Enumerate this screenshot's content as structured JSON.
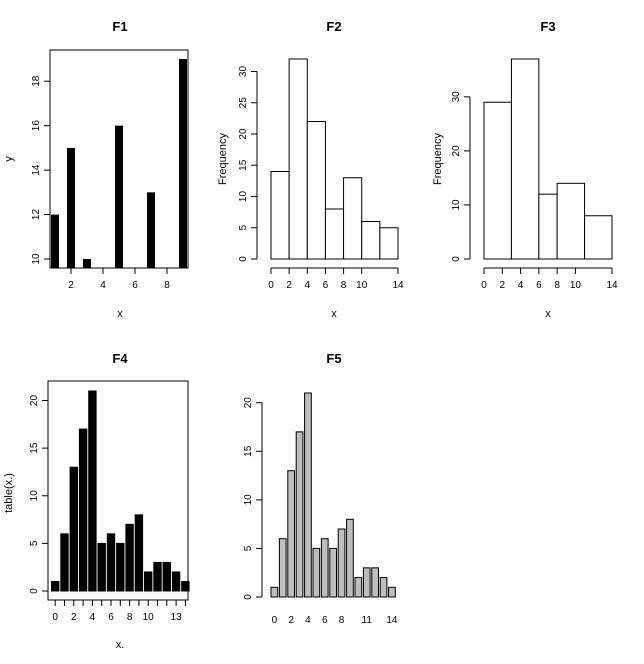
{
  "chart_data": [
    {
      "id": "F1",
      "type": "bar",
      "title": "F1",
      "xlabel": "x",
      "ylabel": "y",
      "x": [
        1,
        2,
        3,
        5,
        7,
        9
      ],
      "values": [
        12,
        15,
        10,
        16,
        13,
        19
      ],
      "xlim": [
        1,
        9
      ],
      "ylim": [
        10,
        19
      ],
      "xticks": [
        2,
        4,
        6,
        8
      ],
      "yticks": [
        10,
        12,
        14,
        16,
        18
      ],
      "fill": "#000000"
    },
    {
      "id": "F2",
      "type": "bar",
      "title": "F2",
      "xlabel": "x",
      "ylabel": "Frequency",
      "breaks": [
        0,
        2,
        4,
        6,
        8,
        10,
        12,
        14
      ],
      "values": [
        14,
        32,
        22,
        8,
        13,
        6,
        5
      ],
      "xticks": [
        0,
        2,
        4,
        6,
        8,
        10,
        14
      ],
      "yticks": [
        0,
        5,
        10,
        15,
        20,
        25,
        30
      ],
      "ylim": [
        0,
        32
      ],
      "fill": "#ffffff"
    },
    {
      "id": "F3",
      "type": "bar",
      "title": "F3",
      "xlabel": "x",
      "ylabel": "Frequency",
      "breaks": [
        0,
        3,
        6,
        8,
        11,
        14
      ],
      "values": [
        29,
        37,
        12,
        14,
        8
      ],
      "xticks": [
        0,
        2,
        4,
        6,
        8,
        10,
        14
      ],
      "yticks": [
        0,
        10,
        20,
        30
      ],
      "ylim": [
        0,
        37
      ],
      "fill": "#ffffff"
    },
    {
      "id": "F4",
      "type": "bar",
      "title": "F4",
      "xlabel": "x.",
      "ylabel": "table(x.)",
      "categories": [
        "0",
        "1",
        "2",
        "3",
        "4",
        "5",
        "6",
        "7",
        "8",
        "9",
        "10",
        "11",
        "12",
        "13",
        "14"
      ],
      "values": [
        1,
        6,
        13,
        17,
        21,
        5,
        6,
        5,
        7,
        8,
        2,
        3,
        3,
        2,
        1
      ],
      "xticks": [
        0,
        2,
        4,
        6,
        8,
        10,
        13
      ],
      "yticks": [
        0,
        5,
        10,
        15,
        20
      ],
      "ylim": [
        0,
        21
      ],
      "fill": "#000000"
    },
    {
      "id": "F5",
      "type": "bar",
      "title": "F5",
      "xlabel": "",
      "ylabel": "",
      "categories": [
        "0",
        "1",
        "2",
        "3",
        "4",
        "5",
        "6",
        "7",
        "8",
        "9",
        "10",
        "11",
        "12",
        "13",
        "14"
      ],
      "values": [
        1,
        6,
        13,
        17,
        21,
        5,
        6,
        5,
        7,
        8,
        2,
        3,
        3,
        2,
        1
      ],
      "xtick_labels": [
        "0",
        "2",
        "4",
        "6",
        "8",
        "11",
        "14"
      ],
      "xtick_positions": [
        0,
        2,
        4,
        6,
        8,
        11,
        14
      ],
      "yticks": [
        0,
        5,
        10,
        15,
        20
      ],
      "ylim": [
        0,
        21
      ],
      "fill": "#bebebe"
    }
  ]
}
